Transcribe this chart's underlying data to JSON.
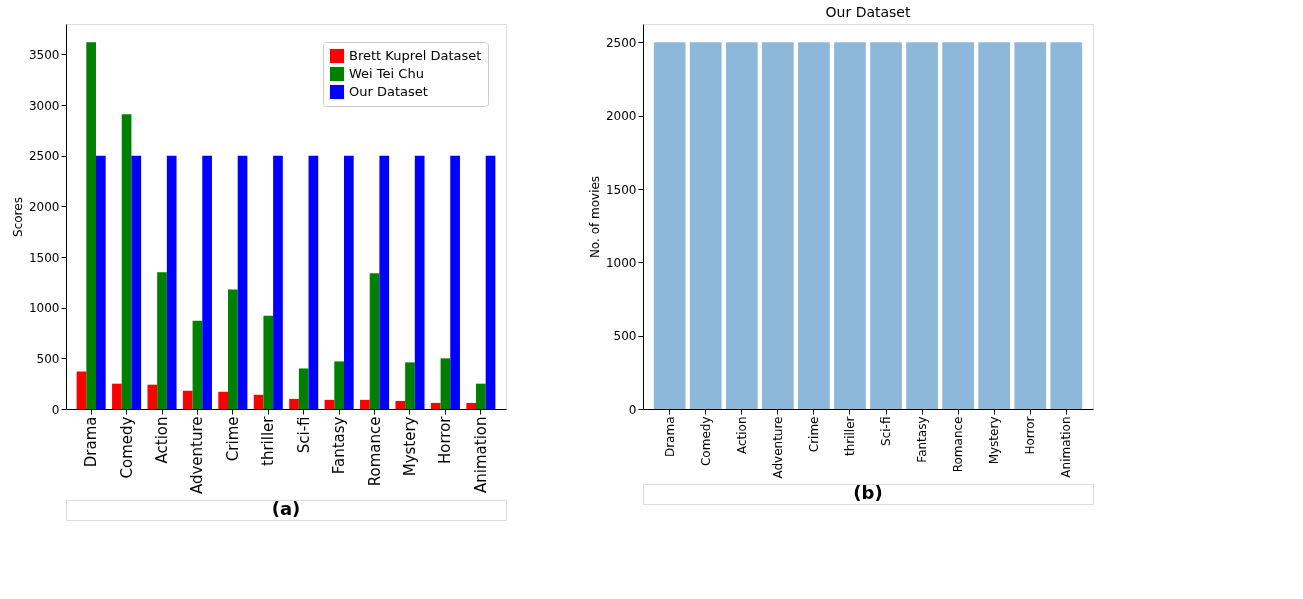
{
  "chart_data": [
    {
      "type": "bar",
      "ylabel": "Scores",
      "categories": [
        "Drama",
        "Comedy",
        "Action",
        "Adventure",
        "Crime",
        "thriller",
        "Sci-fi",
        "Fantasy",
        "Romance",
        "Mystery",
        "Horror",
        "Animation"
      ],
      "series": [
        {
          "name": "Brett Kuprel Dataset",
          "color": "#ff0000",
          "values": [
            370,
            250,
            240,
            180,
            170,
            140,
            100,
            90,
            90,
            80,
            60,
            60
          ]
        },
        {
          "name": "Wei Tei Chu",
          "color": "#008000",
          "values": [
            3620,
            2910,
            1350,
            870,
            1180,
            920,
            400,
            470,
            1340,
            460,
            500,
            250
          ]
        },
        {
          "name": "Our Dataset",
          "color": "#0000ff",
          "values": [
            2500,
            2500,
            2500,
            2500,
            2500,
            2500,
            2500,
            2500,
            2500,
            2500,
            2500,
            2500
          ]
        }
      ],
      "ylim": [
        0,
        3800
      ],
      "yticks": [
        0,
        500,
        1000,
        1500,
        2000,
        2500,
        3000,
        3500
      ],
      "grid": false,
      "legend": "top right",
      "annotations": [
        "(a)"
      ]
    },
    {
      "type": "bar",
      "title": "Our Dataset",
      "ylabel": "No. of movies",
      "categories": [
        "Drama",
        "Comedy",
        "Action",
        "Adventure",
        "Crime",
        "thriller",
        "Sci-fi",
        "Fantasy",
        "Romance",
        "Mystery",
        "Horror",
        "Animation"
      ],
      "color": "#8db8d9",
      "values": [
        2500,
        2500,
        2500,
        2500,
        2500,
        2500,
        2500,
        2500,
        2500,
        2500,
        2500,
        2500
      ],
      "ylim": [
        0,
        2625
      ],
      "yticks": [
        0,
        500,
        1000,
        1500,
        2000,
        2500
      ],
      "grid": false,
      "annotations": [
        "(b)"
      ]
    }
  ]
}
